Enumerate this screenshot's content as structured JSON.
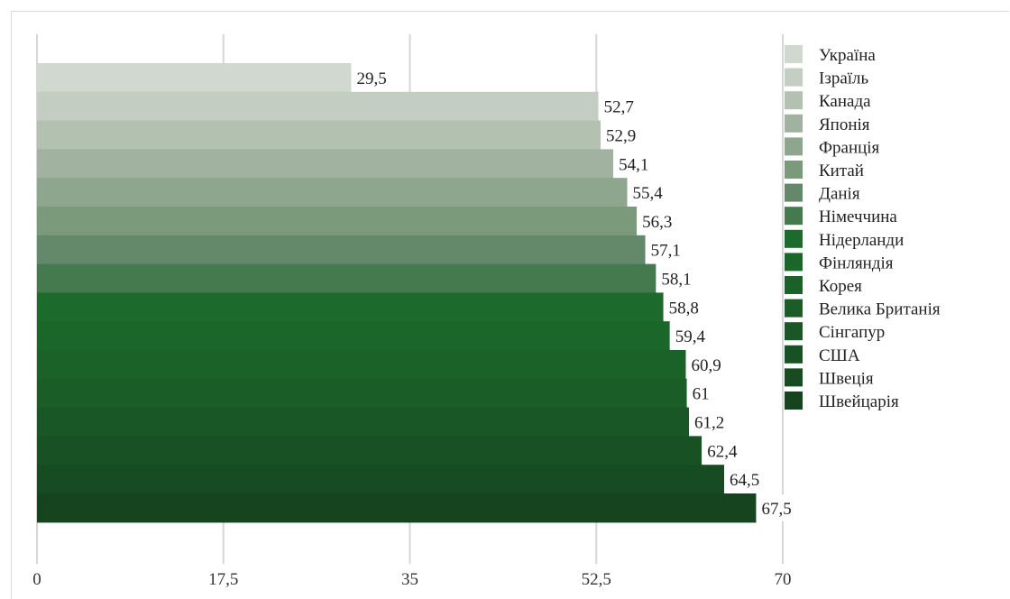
{
  "chart_data": {
    "type": "bar",
    "orientation": "horizontal",
    "categories": [
      "Україна",
      "Ізраїль",
      "Канада",
      "Японія",
      "Франція",
      "Китай",
      "Данія",
      "Німеччина",
      "Нідерланди",
      "Фінляндія",
      "Корея",
      "Велика Британія",
      "Сінгапур",
      "США",
      "Швеція",
      "Швейцарія"
    ],
    "values": [
      29.5,
      52.7,
      52.9,
      54.1,
      55.4,
      56.3,
      57.1,
      58.1,
      58.8,
      59.4,
      60.9,
      61,
      61.2,
      62.4,
      64.5,
      67.5
    ],
    "value_labels": [
      "29,5",
      "52,7",
      "52,9",
      "54,1",
      "55,4",
      "56,3",
      "57,1",
      "58,1",
      "58,8",
      "59,4",
      "60,9",
      "61",
      "61,2",
      "62,4",
      "64,5",
      "67,5"
    ],
    "colors": [
      "#d1d8cf",
      "#c3cdc1",
      "#b3c1b1",
      "#a2b2a1",
      "#8fa68e",
      "#7b9a7c",
      "#63896a",
      "#457a4f",
      "#1c6a2c",
      "#1b6629",
      "#1b6229",
      "#1a5d27",
      "#195826",
      "#185224",
      "#174c22",
      "#15441f"
    ],
    "xticks": [
      "0",
      "17,5",
      "35",
      "52,5",
      "70"
    ],
    "xlim": [
      0,
      70
    ],
    "grid": true,
    "legend_position": "right",
    "title": "",
    "xlabel": "",
    "ylabel": ""
  }
}
